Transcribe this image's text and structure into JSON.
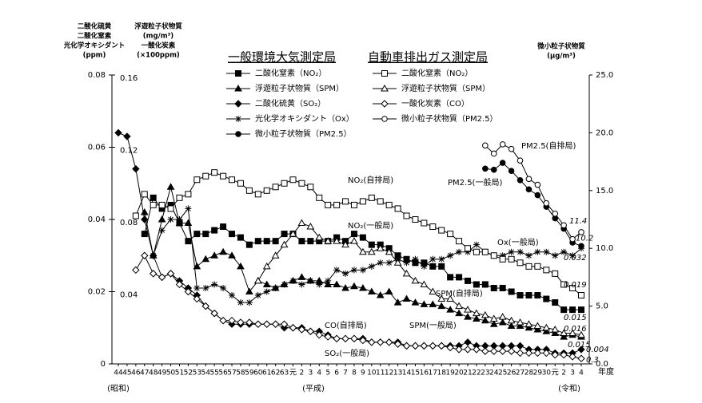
{
  "chart_data": {
    "type": "line",
    "legend_titles": [
      "一般環境大気測定局",
      "自動車排出ガス測定局"
    ],
    "y_title": [
      "二酸化硫黄",
      "二酸化窒素",
      "光化学オキシダント",
      "(ppm)"
    ],
    "y2_title": [
      "浮遊粒子状物質",
      "(mg/m³)",
      "一酸化炭素",
      "(×100ppm)"
    ],
    "y3_title": [
      "微小粒子状物質",
      "(μg/m³)"
    ],
    "x_title": "年度",
    "era_labels": [
      "(昭和)",
      "(平成)",
      "(令和)"
    ],
    "categories": [
      "44",
      "45",
      "46",
      "47",
      "48",
      "49",
      "50",
      "51",
      "52",
      "53",
      "54",
      "55",
      "56",
      "57",
      "58",
      "59",
      "60",
      "61",
      "62",
      "63",
      "元",
      "2",
      "3",
      "4",
      "5",
      "6",
      "7",
      "8",
      "9",
      "10",
      "11",
      "12",
      "13",
      "14",
      "15",
      "16",
      "17",
      "18",
      "19",
      "20",
      "21",
      "22",
      "23",
      "24",
      "25",
      "26",
      "27",
      "28",
      "29",
      "30",
      "元",
      "2",
      "3",
      "4"
    ],
    "ylim": [
      0,
      0.08
    ],
    "yticks": [
      0,
      0.02,
      0.04,
      0.06,
      0.08
    ],
    "y2lim": [
      0,
      0.16
    ],
    "y2ticks": [
      0.04,
      0.08,
      0.12,
      0.16
    ],
    "y3lim": [
      0,
      25
    ],
    "y3ticks": [
      {
        "value": 0,
        "label": "0.0"
      },
      {
        "value": 5,
        "label": "5.0"
      },
      {
        "value": 10,
        "label": "10.0"
      },
      {
        "value": 15,
        "label": "15.0"
      },
      {
        "value": 20,
        "label": "20.0"
      },
      {
        "value": 25,
        "label": "25.0"
      }
    ],
    "annotations": [
      "NO₂(自排局)",
      "NO₂(一般局)",
      "Ox(一般局)",
      "PM2.5(自排局)",
      "PM2.5(一般局)",
      "SPM(自排局)",
      "SPM(一般局)",
      "CO(自排局)",
      "SO₂(一般局)"
    ],
    "series": [
      {
        "name": "二酸化窒素（NO₂）",
        "group": 0,
        "marker": "square",
        "filled": true,
        "color": "#000000",
        "axis": "y",
        "values": [
          null,
          null,
          null,
          0.036,
          0.046,
          0.043,
          0.044,
          0.039,
          0.034,
          0.036,
          0.036,
          0.037,
          0.038,
          0.036,
          0.035,
          0.033,
          0.034,
          0.034,
          0.034,
          0.036,
          0.036,
          0.034,
          0.034,
          0.034,
          0.034,
          0.035,
          0.034,
          0.036,
          0.035,
          0.033,
          0.033,
          0.032,
          0.03,
          0.029,
          0.028,
          0.028,
          0.027,
          0.027,
          0.024,
          0.024,
          0.023,
          0.022,
          0.022,
          0.021,
          0.021,
          0.02,
          0.019,
          0.019,
          0.019,
          0.018,
          0.017,
          0.015,
          0.015,
          0.015
        ],
        "value_labels": [
          null,
          null,
          null,
          null,
          null,
          null,
          null,
          null,
          null,
          null,
          null,
          null,
          null,
          null,
          null,
          null,
          null,
          null,
          null,
          null,
          null,
          null,
          null,
          null,
          null,
          null,
          null,
          null,
          null,
          null,
          null,
          null,
          null,
          null,
          null,
          null,
          null,
          null,
          null,
          null,
          null,
          null,
          null,
          null,
          null,
          null,
          null,
          null,
          null,
          null,
          null,
          null,
          null,
          "0.015"
        ]
      },
      {
        "name": "浮遊粒子状物質（SPM）",
        "group": 0,
        "marker": "triangle",
        "filled": true,
        "color": "#000000",
        "axis": "y2",
        "values": [
          null,
          null,
          null,
          0.084,
          0.06,
          0.08,
          0.098,
          0.078,
          0.078,
          0.054,
          0.058,
          0.06,
          0.062,
          0.06,
          0.054,
          0.04,
          0.046,
          0.044,
          0.042,
          0.044,
          0.046,
          0.048,
          0.046,
          0.046,
          0.044,
          0.044,
          0.042,
          0.043,
          0.042,
          0.04,
          0.038,
          0.04,
          0.034,
          0.036,
          0.034,
          0.033,
          0.033,
          0.032,
          0.03,
          0.028,
          0.026,
          0.025,
          0.024,
          0.022,
          0.023,
          0.021,
          0.021,
          0.02,
          0.019,
          0.018,
          0.017,
          0.015,
          0.016,
          0.015
        ],
        "value_labels": [
          null,
          null,
          null,
          null,
          null,
          null,
          null,
          null,
          null,
          null,
          null,
          null,
          null,
          null,
          null,
          null,
          null,
          null,
          null,
          null,
          null,
          null,
          null,
          null,
          null,
          null,
          null,
          null,
          null,
          null,
          null,
          null,
          null,
          null,
          null,
          null,
          null,
          null,
          null,
          null,
          null,
          null,
          null,
          null,
          null,
          null,
          null,
          null,
          null,
          null,
          null,
          null,
          null,
          "0.015"
        ]
      },
      {
        "name": "二酸化硫黄（SO₂）",
        "group": 0,
        "marker": "diamond",
        "filled": true,
        "color": "#000000",
        "axis": "y",
        "values": [
          0.064,
          0.063,
          0.054,
          0.04,
          0.03,
          0.024,
          0.025,
          0.023,
          0.021,
          0.019,
          0.016,
          0.014,
          0.012,
          0.011,
          0.011,
          0.011,
          0.011,
          0.011,
          0.011,
          0.01,
          0.01,
          0.01,
          0.009,
          0.009,
          0.008,
          0.007,
          0.007,
          0.007,
          0.007,
          0.006,
          0.006,
          0.006,
          0.006,
          0.005,
          0.005,
          0.005,
          0.005,
          0.005,
          0.005,
          0.005,
          0.006,
          0.005,
          0.005,
          0.005,
          0.005,
          0.005,
          0.005,
          0.004,
          0.004,
          0.004,
          0.003,
          0.003,
          0.003,
          0.004
        ],
        "value_labels": [
          null,
          null,
          null,
          null,
          null,
          null,
          null,
          null,
          null,
          null,
          null,
          null,
          null,
          null,
          null,
          null,
          null,
          null,
          null,
          null,
          null,
          null,
          null,
          null,
          null,
          null,
          null,
          null,
          null,
          null,
          null,
          null,
          null,
          null,
          null,
          null,
          null,
          null,
          null,
          null,
          null,
          null,
          null,
          null,
          null,
          null,
          null,
          null,
          null,
          null,
          null,
          null,
          null,
          "0.004"
        ]
      },
      {
        "name": "光化学オキシダント（Ox）",
        "group": 0,
        "marker": "asterisk",
        "filled": true,
        "color": "#000000",
        "axis": "y",
        "values": [
          null,
          null,
          null,
          null,
          0.03,
          0.037,
          0.04,
          0.04,
          0.043,
          0.021,
          0.021,
          0.022,
          0.021,
          0.019,
          0.017,
          0.017,
          0.019,
          0.02,
          0.021,
          0.022,
          0.023,
          0.022,
          0.023,
          0.022,
          0.023,
          0.026,
          0.025,
          0.026,
          0.026,
          0.027,
          0.028,
          0.028,
          0.029,
          0.028,
          0.029,
          0.027,
          0.029,
          0.029,
          0.03,
          0.031,
          0.031,
          0.033,
          0.031,
          0.03,
          0.03,
          0.031,
          0.031,
          0.03,
          0.031,
          0.031,
          0.03,
          0.031,
          0.03,
          0.032
        ],
        "value_labels": [
          null,
          null,
          null,
          null,
          null,
          null,
          null,
          null,
          null,
          null,
          null,
          null,
          null,
          null,
          null,
          null,
          null,
          null,
          null,
          null,
          null,
          null,
          null,
          null,
          null,
          null,
          null,
          null,
          null,
          null,
          null,
          null,
          null,
          null,
          null,
          null,
          null,
          null,
          null,
          null,
          null,
          null,
          null,
          null,
          null,
          null,
          null,
          null,
          null,
          null,
          null,
          null,
          null,
          "0.032"
        ]
      },
      {
        "name": "微小粒子状物質（PM2.5）",
        "group": 0,
        "marker": "circle",
        "filled": true,
        "color": "#000000",
        "axis": "y3",
        "values": [
          null,
          null,
          null,
          null,
          null,
          null,
          null,
          null,
          null,
          null,
          null,
          null,
          null,
          null,
          null,
          null,
          null,
          null,
          null,
          null,
          null,
          null,
          null,
          null,
          null,
          null,
          null,
          null,
          null,
          null,
          null,
          null,
          null,
          null,
          null,
          null,
          null,
          null,
          null,
          null,
          null,
          null,
          16.9,
          16.8,
          17.4,
          16.7,
          15.9,
          15.1,
          14.6,
          13.6,
          12.6,
          11.7,
          10.5,
          10.2
        ],
        "value_labels": [
          null,
          null,
          null,
          null,
          null,
          null,
          null,
          null,
          null,
          null,
          null,
          null,
          null,
          null,
          null,
          null,
          null,
          null,
          null,
          null,
          null,
          null,
          null,
          null,
          null,
          null,
          null,
          null,
          null,
          null,
          null,
          null,
          null,
          null,
          null,
          null,
          null,
          null,
          null,
          null,
          null,
          null,
          null,
          null,
          null,
          null,
          null,
          null,
          null,
          null,
          null,
          null,
          null,
          "10.2"
        ]
      },
      {
        "name": "二酸化窒素（NO₂）",
        "group": 1,
        "marker": "square",
        "filled": false,
        "color": "#000000",
        "axis": "y",
        "values": [
          null,
          null,
          0.041,
          0.047,
          0.044,
          0.044,
          0.043,
          0.046,
          0.047,
          0.051,
          0.052,
          0.053,
          0.052,
          0.051,
          0.05,
          0.048,
          0.047,
          0.048,
          0.049,
          0.05,
          0.051,
          0.05,
          0.049,
          0.046,
          0.044,
          0.044,
          0.045,
          0.044,
          0.045,
          0.046,
          0.045,
          0.044,
          0.043,
          0.041,
          0.04,
          0.039,
          0.038,
          0.037,
          0.036,
          0.034,
          0.032,
          0.031,
          0.031,
          0.03,
          0.029,
          0.029,
          0.028,
          0.027,
          0.027,
          0.026,
          0.025,
          0.022,
          0.021,
          0.019
        ],
        "value_labels": [
          null,
          null,
          null,
          null,
          null,
          null,
          null,
          null,
          null,
          null,
          null,
          null,
          null,
          null,
          null,
          null,
          null,
          null,
          null,
          null,
          null,
          null,
          null,
          null,
          null,
          null,
          null,
          null,
          null,
          null,
          null,
          null,
          null,
          null,
          null,
          null,
          null,
          null,
          null,
          null,
          null,
          null,
          null,
          null,
          null,
          null,
          null,
          null,
          null,
          null,
          null,
          null,
          null,
          "0.019"
        ]
      },
      {
        "name": "浮遊粒子状物質（SPM）",
        "group": 1,
        "marker": "triangle",
        "filled": false,
        "color": "#000000",
        "axis": "y2",
        "values": [
          null,
          null,
          null,
          null,
          null,
          null,
          null,
          null,
          null,
          null,
          null,
          null,
          null,
          null,
          null,
          null,
          0.046,
          0.054,
          0.06,
          0.066,
          0.072,
          0.078,
          0.076,
          0.07,
          0.068,
          0.068,
          0.066,
          0.068,
          0.062,
          0.062,
          0.064,
          0.062,
          0.056,
          0.05,
          0.046,
          0.044,
          0.04,
          0.036,
          0.036,
          0.032,
          0.03,
          0.028,
          0.027,
          0.025,
          0.026,
          0.024,
          0.023,
          0.022,
          0.021,
          0.02,
          0.019,
          0.017,
          0.017,
          0.016
        ],
        "value_labels": [
          null,
          null,
          null,
          null,
          null,
          null,
          null,
          null,
          null,
          null,
          null,
          null,
          null,
          null,
          null,
          null,
          null,
          null,
          null,
          null,
          null,
          null,
          null,
          null,
          null,
          null,
          null,
          null,
          null,
          null,
          null,
          null,
          null,
          null,
          null,
          null,
          null,
          null,
          null,
          null,
          null,
          null,
          null,
          null,
          null,
          null,
          null,
          null,
          null,
          null,
          null,
          null,
          null,
          "0.016"
        ]
      },
      {
        "name": "一酸化炭素（CO）",
        "group": 1,
        "marker": "diamond",
        "filled": false,
        "color": "#000000",
        "axis": "y2",
        "values": [
          null,
          null,
          0.052,
          0.06,
          0.05,
          0.048,
          0.05,
          0.044,
          0.04,
          0.036,
          0.032,
          0.028,
          0.024,
          0.024,
          0.023,
          0.023,
          0.022,
          0.022,
          0.022,
          0.022,
          0.02,
          0.019,
          0.018,
          0.016,
          0.015,
          0.014,
          0.014,
          0.014,
          0.013,
          0.012,
          0.012,
          0.012,
          0.011,
          0.01,
          0.01,
          0.01,
          0.01,
          0.01,
          0.009,
          0.008,
          0.008,
          0.008,
          0.007,
          0.007,
          0.007,
          0.007,
          0.006,
          0.006,
          0.006,
          0.006,
          0.005,
          0.005,
          0.004,
          0.003
        ],
        "value_labels": [
          null,
          null,
          null,
          null,
          null,
          null,
          null,
          null,
          null,
          null,
          null,
          null,
          null,
          null,
          null,
          null,
          null,
          null,
          null,
          null,
          null,
          null,
          null,
          null,
          null,
          null,
          null,
          null,
          null,
          null,
          null,
          null,
          null,
          null,
          null,
          null,
          null,
          null,
          null,
          null,
          null,
          null,
          null,
          null,
          null,
          null,
          null,
          null,
          null,
          null,
          null,
          null,
          null,
          "0.3"
        ]
      },
      {
        "name": "微小粒子状物質（PM2.5）",
        "group": 1,
        "marker": "circle",
        "filled": false,
        "color": "#000000",
        "axis": "y3",
        "values": [
          null,
          null,
          null,
          null,
          null,
          null,
          null,
          null,
          null,
          null,
          null,
          null,
          null,
          null,
          null,
          null,
          null,
          null,
          null,
          null,
          null,
          null,
          null,
          null,
          null,
          null,
          null,
          null,
          null,
          null,
          null,
          null,
          null,
          null,
          null,
          null,
          null,
          null,
          null,
          null,
          null,
          null,
          18.9,
          18.2,
          19.0,
          18.6,
          17.6,
          16.0,
          15.5,
          13.9,
          13.0,
          12.0,
          10.8,
          11.4
        ],
        "value_labels": [
          null,
          null,
          null,
          null,
          null,
          null,
          null,
          null,
          null,
          null,
          null,
          null,
          null,
          null,
          null,
          null,
          null,
          null,
          null,
          null,
          null,
          null,
          null,
          null,
          null,
          null,
          null,
          null,
          null,
          null,
          null,
          null,
          null,
          null,
          null,
          null,
          null,
          null,
          null,
          null,
          null,
          null,
          null,
          null,
          null,
          null,
          null,
          null,
          null,
          null,
          null,
          null,
          null,
          "11.4"
        ]
      }
    ]
  }
}
